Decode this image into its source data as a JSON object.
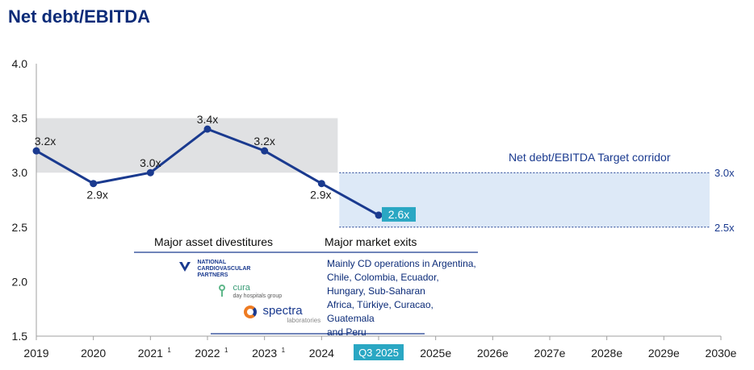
{
  "title": "Net debt/EBITDA",
  "chart_data": {
    "type": "line",
    "title": "Net debt/EBITDA",
    "ylim": [
      1.5,
      4.0
    ],
    "yticks": [
      "1.5",
      "2.0",
      "2.5",
      "3.0",
      "3.5",
      "4.0"
    ],
    "categories": [
      "2019",
      "2020",
      "2021",
      "2022",
      "2023",
      "2024",
      "Q3 2025",
      "2025e",
      "2026e",
      "2027e",
      "2028e",
      "2029e",
      "2030e"
    ],
    "footnote_marks": [
      "",
      "",
      "1",
      "1",
      "1",
      "",
      "",
      "",
      "",
      "",
      "",
      "",
      ""
    ],
    "series": [
      {
        "name": "Net debt/EBITDA",
        "x": [
          "2019",
          "2020",
          "2021",
          "2022",
          "2023",
          "2024",
          "Q3 2025"
        ],
        "values": [
          3.2,
          2.9,
          3.0,
          3.4,
          3.2,
          2.9,
          2.61
        ],
        "labels": [
          "3.2x",
          "2.9x",
          "3.0x",
          "3.4x",
          "3.2x",
          "2.9x",
          "2.6x"
        ]
      }
    ],
    "historic_band": {
      "from": "2019",
      "to": "2024",
      "ymin": 3.0,
      "ymax": 3.5
    },
    "target_corridor": {
      "label": "Net debt/EBITDA Target  corridor",
      "ymin": 2.5,
      "ymax": 3.0,
      "upper_label": "3.0x",
      "lower_label": "2.5x"
    }
  },
  "annotations": {
    "divestitures_header": "Major asset divestitures",
    "exits_header": "Major market exits",
    "exits_text": [
      "Mainly CD operations in Argentina,",
      "Chile, Colombia, Ecuador,",
      "Hungary, Sub-Saharan",
      "Africa, Türkiye, Curacao,",
      "Guatemala",
      "and Peru"
    ],
    "logos": {
      "ncp": [
        "NATIONAL",
        "CARDIOVASCULAR",
        "PARTNERS"
      ],
      "cura": [
        "cura",
        "day hospitals group"
      ],
      "spectra": [
        "spectra",
        "laboratories"
      ]
    }
  },
  "colors": {
    "line": "#1a3a8f",
    "title": "#0b2b78",
    "band": "#e0e1e3",
    "corridor": "#dde9f7",
    "highlight": "#2aa7c3"
  }
}
